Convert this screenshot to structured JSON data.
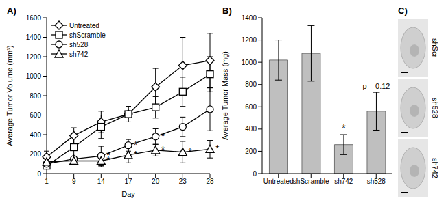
{
  "chart_data": [
    {
      "type": "line",
      "title": "A)",
      "x_label": "Day",
      "y_label": "Average Tumor Volume (mm³)",
      "categories": [
        "1",
        "9",
        "14",
        "17",
        "20",
        "23",
        "28"
      ],
      "ylim": [
        0,
        1600
      ],
      "yticks": [
        0,
        200,
        400,
        600,
        800,
        1000,
        1200,
        1400,
        1600
      ],
      "legend": "upper left",
      "series": [
        {
          "name": "Untreated",
          "color": "#000000",
          "marker": "diamond",
          "values": [
            170,
            390,
            530,
            610,
            890,
            1110,
            1160
          ],
          "errors": [
            60,
            80,
            110,
            80,
            190,
            290,
            280
          ]
        },
        {
          "name": "shScramble",
          "color": "#000000",
          "marker": "square",
          "values": [
            80,
            270,
            480,
            610,
            680,
            840,
            1020
          ],
          "errors": [
            30,
            130,
            120,
            80,
            110,
            150,
            180
          ]
        },
        {
          "name": "sh528",
          "color": "#000000",
          "marker": "circle",
          "values": [
            100,
            150,
            180,
            290,
            380,
            480,
            660
          ],
          "errors": [
            30,
            50,
            100,
            60,
            80,
            100,
            220
          ]
        },
        {
          "name": "sh742",
          "color": "#000000",
          "marker": "triangle",
          "values": [
            120,
            130,
            130,
            190,
            240,
            220,
            250
          ],
          "errors": [
            30,
            40,
            60,
            80,
            60,
            110,
            90
          ]
        }
      ],
      "annotations": [
        {
          "category": "14",
          "series": "sh528",
          "text": "*"
        },
        {
          "category": "17",
          "series": "sh528",
          "text": "*"
        },
        {
          "category": "20",
          "series": "sh528",
          "text": "*"
        },
        {
          "category": "14",
          "series": "sh742",
          "text": "*"
        },
        {
          "category": "17",
          "series": "sh742",
          "text": "*"
        },
        {
          "category": "20",
          "series": "sh742",
          "text": "*"
        },
        {
          "category": "23",
          "series": "sh742",
          "text": "*"
        },
        {
          "category": "28",
          "series": "sh742",
          "text": "*"
        }
      ]
    },
    {
      "type": "bar",
      "title": "B)",
      "y_label": "Average Tumor Mass (mg)",
      "categories": [
        "Untreated",
        "shScramble",
        "sh742",
        "sh528"
      ],
      "values": [
        1020,
        1080,
        260,
        560
      ],
      "errors": [
        180,
        250,
        90,
        170
      ],
      "color": "#bfbfbf",
      "ylim": [
        0,
        1400
      ],
      "yticks": [
        0,
        200,
        400,
        600,
        800,
        1000,
        1200,
        1400
      ],
      "annotations": [
        {
          "category": "sh742",
          "text": "*"
        },
        {
          "category": "sh528",
          "text": "p = 0.12"
        }
      ]
    }
  ],
  "panel_c": {
    "title": "C)",
    "labels": [
      "shScr",
      "sh528",
      "sh742"
    ]
  }
}
